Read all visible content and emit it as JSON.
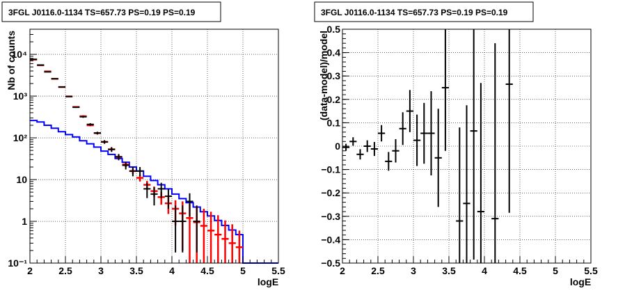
{
  "colors": {
    "data": "#000000",
    "model": "#0000ff",
    "sim": "#ff0000",
    "grid": "#000000"
  },
  "chart_data": [
    {
      "type": "line",
      "title": "3FGL J0116.0-1134 TS=657.73 PS=0.19 PS=0.19",
      "xlabel": "logE",
      "ylabel": "Nb of counts",
      "xlim": [
        2,
        5.5
      ],
      "ylim": [
        0.1,
        40000
      ],
      "yscale": "log",
      "grid": true,
      "xticks": [
        "2",
        "2.5",
        "3",
        "3.5",
        "4",
        "4.5",
        "5",
        "5.5"
      ],
      "yticks": [
        "10⁻¹",
        "1",
        "10",
        "10²",
        "10³",
        "10⁴"
      ],
      "bin_width": 0.1,
      "series": [
        {
          "role": "model",
          "style": "step",
          "x": [
            2.0,
            2.1,
            2.2,
            2.3,
            2.4,
            2.5,
            2.6,
            2.7,
            2.8,
            2.9,
            3.0,
            3.1,
            3.2,
            3.3,
            3.4,
            3.5,
            3.6,
            3.7,
            3.8,
            3.9,
            4.0,
            4.1,
            4.2,
            4.3,
            4.4,
            4.5,
            4.6,
            4.7,
            4.8,
            4.9,
            5.0,
            5.1,
            5.2,
            5.3,
            5.4
          ],
          "values": [
            260,
            240,
            200,
            170,
            140,
            120,
            105,
            85,
            72,
            60,
            48,
            40,
            32,
            26,
            20,
            16,
            12,
            9.5,
            7.5,
            6,
            4.5,
            3.5,
            2.8,
            2.2,
            1.7,
            1.35,
            1.05,
            0.8,
            0.62,
            0.48,
            0.1,
            0.1,
            0.1,
            0.1,
            0.1
          ]
        },
        {
          "role": "sim",
          "style": "errorbar",
          "x": [
            2.05,
            2.15,
            2.25,
            2.35,
            2.45,
            2.55,
            2.65,
            2.75,
            2.85,
            2.95,
            3.05,
            3.15,
            3.25,
            3.35,
            3.45,
            3.55,
            3.65,
            3.75,
            3.85,
            3.95,
            4.05,
            4.15,
            4.25,
            4.35,
            4.45,
            4.55,
            4.65,
            4.75,
            4.85,
            4.95
          ],
          "values": [
            7500,
            5500,
            3900,
            2600,
            1650,
            980,
            550,
            330,
            200,
            130,
            80,
            53,
            35,
            23,
            16,
            11,
            7.5,
            5.3,
            3.8,
            2.7,
            2.0,
            1.55,
            1.2,
            0.95,
            0.78,
            0.6,
            0.48,
            0.38,
            0.3,
            0.24
          ],
          "err_low": [
            7400,
            5400,
            3800,
            2520,
            1590,
            940,
            525,
            314,
            190,
            122,
            74,
            48,
            31,
            20,
            13.6,
            9.0,
            5.7,
            3.8,
            2.5,
            1.5,
            0.8,
            0.2,
            0.1,
            0.1,
            0.1,
            0.1,
            0.1,
            0.1,
            0.1,
            0.1
          ],
          "err_high": [
            7600,
            5600,
            4000,
            2680,
            1710,
            1020,
            575,
            346,
            210,
            138,
            86,
            58,
            39,
            26,
            18.4,
            13.0,
            9.3,
            6.8,
            5.1,
            3.9,
            3.2,
            3.0,
            2.6,
            2.3,
            2.0,
            1.7,
            1.4,
            1.05,
            0.85,
            0.6
          ]
        },
        {
          "role": "data",
          "style": "errorbar",
          "x": [
            2.05,
            2.15,
            2.25,
            2.35,
            2.45,
            2.55,
            2.65,
            2.75,
            2.85,
            2.95,
            3.05,
            3.15,
            3.25,
            3.35,
            3.45,
            3.55,
            3.65,
            3.75,
            3.85,
            3.95,
            4.05,
            4.15,
            4.25,
            4.35
          ],
          "values": [
            7600,
            5550,
            3800,
            2600,
            1650,
            980,
            540,
            320,
            210,
            130,
            80,
            53,
            35,
            22,
            16,
            16,
            6,
            4.5,
            6,
            4,
            1,
            1,
            3,
            1
          ],
          "err_low": [
            7450,
            5420,
            3700,
            2520,
            1590,
            950,
            520,
            302,
            195,
            120,
            72,
            46,
            29,
            17.5,
            12,
            12,
            3.6,
            2.4,
            3.6,
            2.0,
            0.18,
            0.18,
            1.3,
            0.18
          ],
          "err_high": [
            7750,
            5680,
            3900,
            2680,
            1710,
            1010,
            560,
            338,
            225,
            140,
            88,
            60,
            41,
            26.5,
            20,
            20,
            8.4,
            6.6,
            8.4,
            6.0,
            2.4,
            2.4,
            4.7,
            2.4
          ]
        }
      ]
    },
    {
      "type": "scatter",
      "title": "3FGL J0116.0-1134 TS=657.73 PS=0.19 PS=0.19",
      "xlabel": "logE",
      "ylabel": "(data-model)/model",
      "xlim": [
        2,
        5.5
      ],
      "ylim": [
        -0.5,
        0.5
      ],
      "grid": true,
      "xticks": [
        "2",
        "2.5",
        "3",
        "3.5",
        "4",
        "4.5",
        "5",
        "5.5"
      ],
      "yticks": [
        "−0.5",
        "−0.4",
        "−0.3",
        "−0.2",
        "−0.1",
        "0",
        "0.1",
        "0.2",
        "0.3",
        "0.4",
        "0.5"
      ],
      "bin_width": 0.1,
      "series": [
        {
          "role": "data",
          "style": "errorbar",
          "x": [
            2.05,
            2.15,
            2.25,
            2.35,
            2.45,
            2.55,
            2.65,
            2.75,
            2.85,
            2.95,
            3.05,
            3.15,
            3.25,
            3.35,
            3.45,
            3.65,
            3.75,
            3.85,
            3.95,
            4.15,
            4.35
          ],
          "values": [
            -0.005,
            0.02,
            -0.035,
            0.0,
            -0.012,
            0.055,
            -0.065,
            -0.02,
            0.075,
            0.15,
            0.025,
            0.055,
            0.055,
            -0.05,
            0.25,
            -0.32,
            -0.245,
            0.065,
            -0.28,
            -0.31,
            0.265
          ],
          "err": [
            0.015,
            0.018,
            0.022,
            0.025,
            0.03,
            0.035,
            0.04,
            0.05,
            0.07,
            0.09,
            0.11,
            0.13,
            0.18,
            0.21,
            0.27,
            0.4,
            0.42,
            0.55,
            0.55,
            0.75,
            0.55
          ]
        }
      ]
    }
  ]
}
